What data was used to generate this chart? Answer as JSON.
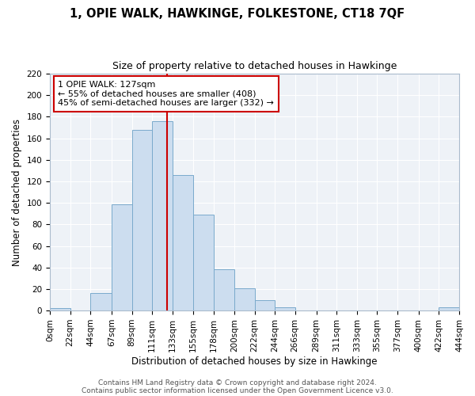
{
  "title": "1, OPIE WALK, HAWKINGE, FOLKESTONE, CT18 7QF",
  "subtitle": "Size of property relative to detached houses in Hawkinge",
  "xlabel": "Distribution of detached houses by size in Hawkinge",
  "ylabel": "Number of detached properties",
  "bar_color": "#ccddef",
  "bar_edge_color": "#7aaacc",
  "vline_x": 127,
  "vline_color": "#cc0000",
  "annotation_line1": "1 OPIE WALK: 127sqm",
  "annotation_line2": "← 55% of detached houses are smaller (408)",
  "annotation_line3": "45% of semi-detached houses are larger (332) →",
  "bin_edges": [
    0,
    22,
    44,
    67,
    89,
    111,
    133,
    155,
    178,
    200,
    222,
    244,
    266,
    289,
    311,
    333,
    355,
    377,
    400,
    422,
    444
  ],
  "bin_labels": [
    "0sqm",
    "22sqm",
    "44sqm",
    "67sqm",
    "89sqm",
    "111sqm",
    "133sqm",
    "155sqm",
    "178sqm",
    "200sqm",
    "222sqm",
    "244sqm",
    "266sqm",
    "289sqm",
    "311sqm",
    "333sqm",
    "355sqm",
    "377sqm",
    "400sqm",
    "422sqm",
    "444sqm"
  ],
  "counts": [
    2,
    0,
    16,
    99,
    168,
    176,
    126,
    89,
    38,
    21,
    10,
    3,
    0,
    0,
    0,
    0,
    0,
    0,
    0,
    3
  ],
  "ylim": [
    0,
    220
  ],
  "yticks": [
    0,
    20,
    40,
    60,
    80,
    100,
    120,
    140,
    160,
    180,
    200,
    220
  ],
  "footer1": "Contains HM Land Registry data © Crown copyright and database right 2024.",
  "footer2": "Contains public sector information licensed under the Open Government Licence v3.0.",
  "background_color": "#ffffff",
  "plot_bg_color": "#eef2f7",
  "grid_color": "#ffffff",
  "title_fontsize": 10.5,
  "subtitle_fontsize": 9,
  "axis_label_fontsize": 8.5,
  "tick_fontsize": 7.5,
  "footer_fontsize": 6.5,
  "annotation_fontsize": 8,
  "annotation_box_color": "#ffffff",
  "annotation_box_edge": "#cc0000"
}
